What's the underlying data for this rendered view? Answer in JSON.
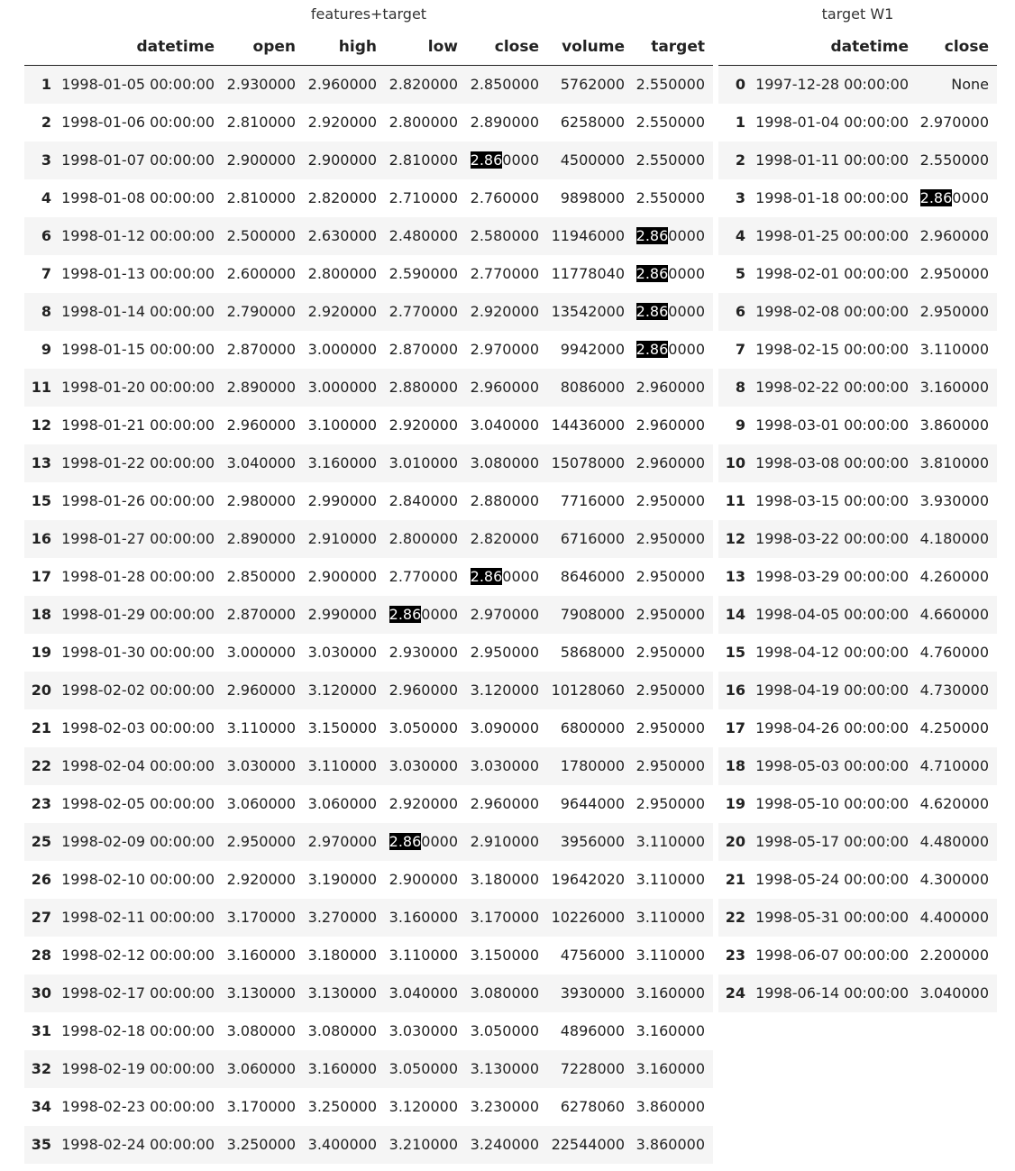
{
  "features": {
    "caption": "features+target",
    "columns": [
      "",
      "datetime",
      "open",
      "high",
      "low",
      "close",
      "volume",
      "target"
    ],
    "rows": [
      [
        "1",
        "1998-01-05 00:00:00",
        "2.930000",
        "2.960000",
        "2.820000",
        "2.850000",
        "5762000",
        "2.550000"
      ],
      [
        "2",
        "1998-01-06 00:00:00",
        "2.810000",
        "2.920000",
        "2.800000",
        "2.890000",
        "6258000",
        "2.550000"
      ],
      [
        "3",
        "1998-01-07 00:00:00",
        "2.900000",
        "2.900000",
        "2.810000",
        "2.860000",
        "4500000",
        "2.550000"
      ],
      [
        "4",
        "1998-01-08 00:00:00",
        "2.810000",
        "2.820000",
        "2.710000",
        "2.760000",
        "9898000",
        "2.550000"
      ],
      [
        "6",
        "1998-01-12 00:00:00",
        "2.500000",
        "2.630000",
        "2.480000",
        "2.580000",
        "11946000",
        "2.860000"
      ],
      [
        "7",
        "1998-01-13 00:00:00",
        "2.600000",
        "2.800000",
        "2.590000",
        "2.770000",
        "11778040",
        "2.860000"
      ],
      [
        "8",
        "1998-01-14 00:00:00",
        "2.790000",
        "2.920000",
        "2.770000",
        "2.920000",
        "13542000",
        "2.860000"
      ],
      [
        "9",
        "1998-01-15 00:00:00",
        "2.870000",
        "3.000000",
        "2.870000",
        "2.970000",
        "9942000",
        "2.860000"
      ],
      [
        "11",
        "1998-01-20 00:00:00",
        "2.890000",
        "3.000000",
        "2.880000",
        "2.960000",
        "8086000",
        "2.960000"
      ],
      [
        "12",
        "1998-01-21 00:00:00",
        "2.960000",
        "3.100000",
        "2.920000",
        "3.040000",
        "14436000",
        "2.960000"
      ],
      [
        "13",
        "1998-01-22 00:00:00",
        "3.040000",
        "3.160000",
        "3.010000",
        "3.080000",
        "15078000",
        "2.960000"
      ],
      [
        "15",
        "1998-01-26 00:00:00",
        "2.980000",
        "2.990000",
        "2.840000",
        "2.880000",
        "7716000",
        "2.950000"
      ],
      [
        "16",
        "1998-01-27 00:00:00",
        "2.890000",
        "2.910000",
        "2.800000",
        "2.820000",
        "6716000",
        "2.950000"
      ],
      [
        "17",
        "1998-01-28 00:00:00",
        "2.850000",
        "2.900000",
        "2.770000",
        "2.860000",
        "8646000",
        "2.950000"
      ],
      [
        "18",
        "1998-01-29 00:00:00",
        "2.870000",
        "2.990000",
        "2.860000",
        "2.970000",
        "7908000",
        "2.950000"
      ],
      [
        "19",
        "1998-01-30 00:00:00",
        "3.000000",
        "3.030000",
        "2.930000",
        "2.950000",
        "5868000",
        "2.950000"
      ],
      [
        "20",
        "1998-02-02 00:00:00",
        "2.960000",
        "3.120000",
        "2.960000",
        "3.120000",
        "10128060",
        "2.950000"
      ],
      [
        "21",
        "1998-02-03 00:00:00",
        "3.110000",
        "3.150000",
        "3.050000",
        "3.090000",
        "6800000",
        "2.950000"
      ],
      [
        "22",
        "1998-02-04 00:00:00",
        "3.030000",
        "3.110000",
        "3.030000",
        "3.030000",
        "1780000",
        "2.950000"
      ],
      [
        "23",
        "1998-02-05 00:00:00",
        "3.060000",
        "3.060000",
        "2.920000",
        "2.960000",
        "9644000",
        "2.950000"
      ],
      [
        "25",
        "1998-02-09 00:00:00",
        "2.950000",
        "2.970000",
        "2.860000",
        "2.910000",
        "3956000",
        "3.110000"
      ],
      [
        "26",
        "1998-02-10 00:00:00",
        "2.920000",
        "3.190000",
        "2.900000",
        "3.180000",
        "19642020",
        "3.110000"
      ],
      [
        "27",
        "1998-02-11 00:00:00",
        "3.170000",
        "3.270000",
        "3.160000",
        "3.170000",
        "10226000",
        "3.110000"
      ],
      [
        "28",
        "1998-02-12 00:00:00",
        "3.160000",
        "3.180000",
        "3.110000",
        "3.150000",
        "4756000",
        "3.110000"
      ],
      [
        "30",
        "1998-02-17 00:00:00",
        "3.130000",
        "3.130000",
        "3.040000",
        "3.080000",
        "3930000",
        "3.160000"
      ],
      [
        "31",
        "1998-02-18 00:00:00",
        "3.080000",
        "3.080000",
        "3.030000",
        "3.050000",
        "4896000",
        "3.160000"
      ],
      [
        "32",
        "1998-02-19 00:00:00",
        "3.060000",
        "3.160000",
        "3.050000",
        "3.130000",
        "7228000",
        "3.160000"
      ],
      [
        "34",
        "1998-02-23 00:00:00",
        "3.170000",
        "3.250000",
        "3.120000",
        "3.230000",
        "6278060",
        "3.860000"
      ],
      [
        "35",
        "1998-02-24 00:00:00",
        "3.250000",
        "3.400000",
        "3.210000",
        "3.240000",
        "22544000",
        "3.860000"
      ]
    ]
  },
  "target_w1": {
    "caption": "target W1",
    "columns": [
      "",
      "datetime",
      "close"
    ],
    "rows": [
      [
        "0",
        "1997-12-28 00:00:00",
        "None"
      ],
      [
        "1",
        "1998-01-04 00:00:00",
        "2.970000"
      ],
      [
        "2",
        "1998-01-11 00:00:00",
        "2.550000"
      ],
      [
        "3",
        "1998-01-18 00:00:00",
        "2.860000"
      ],
      [
        "4",
        "1998-01-25 00:00:00",
        "2.960000"
      ],
      [
        "5",
        "1998-02-01 00:00:00",
        "2.950000"
      ],
      [
        "6",
        "1998-02-08 00:00:00",
        "2.950000"
      ],
      [
        "7",
        "1998-02-15 00:00:00",
        "3.110000"
      ],
      [
        "8",
        "1998-02-22 00:00:00",
        "3.160000"
      ],
      [
        "9",
        "1998-03-01 00:00:00",
        "3.860000"
      ],
      [
        "10",
        "1998-03-08 00:00:00",
        "3.810000"
      ],
      [
        "11",
        "1998-03-15 00:00:00",
        "3.930000"
      ],
      [
        "12",
        "1998-03-22 00:00:00",
        "4.180000"
      ],
      [
        "13",
        "1998-03-29 00:00:00",
        "4.260000"
      ],
      [
        "14",
        "1998-04-05 00:00:00",
        "4.660000"
      ],
      [
        "15",
        "1998-04-12 00:00:00",
        "4.760000"
      ],
      [
        "16",
        "1998-04-19 00:00:00",
        "4.730000"
      ],
      [
        "17",
        "1998-04-26 00:00:00",
        "4.250000"
      ],
      [
        "18",
        "1998-05-03 00:00:00",
        "4.710000"
      ],
      [
        "19",
        "1998-05-10 00:00:00",
        "4.620000"
      ],
      [
        "20",
        "1998-05-17 00:00:00",
        "4.480000"
      ],
      [
        "21",
        "1998-05-24 00:00:00",
        "4.300000"
      ],
      [
        "22",
        "1998-05-31 00:00:00",
        "4.400000"
      ],
      [
        "23",
        "1998-06-07 00:00:00",
        "2.200000"
      ],
      [
        "24",
        "1998-06-14 00:00:00",
        "3.040000"
      ]
    ]
  },
  "highlight": {
    "text": "2.86",
    "background": "#000000",
    "color": "#ffffff"
  },
  "colors": {
    "stripe": "#f5f5f5",
    "header_rule": "#222222"
  }
}
